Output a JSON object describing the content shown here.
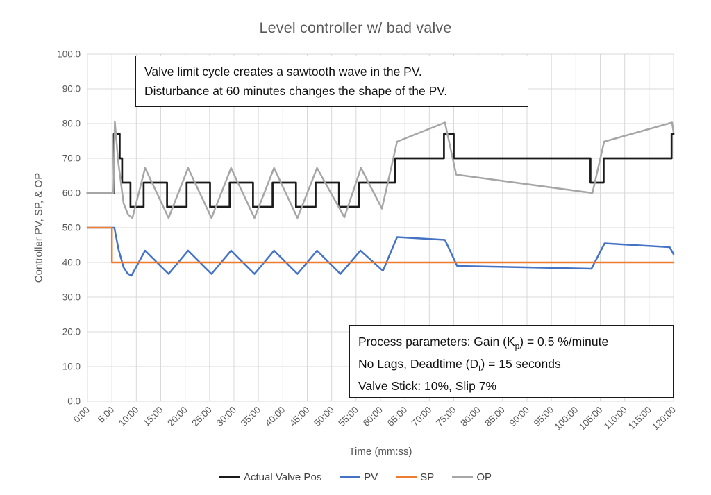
{
  "title": "Level controller w/ bad valve",
  "annotations": {
    "callout": {
      "lines": [
        "Valve limit cycle creates a sawtooth wave in the PV.",
        "Disturbance at 60 minutes changes the shape of the PV."
      ]
    },
    "params": {
      "lines": [
        [
          {
            "t": "Process parameters:  Gain (K"
          },
          {
            "t": "p",
            "sub": true
          },
          {
            "t": ") = 0.5 %/minute"
          }
        ],
        [
          {
            "t": "No Lags, Deadtime (D"
          },
          {
            "t": "t",
            "sub": true
          },
          {
            "t": ") = 15 seconds"
          }
        ],
        [
          {
            "t": "Valve Stick: 10%, Slip 7%"
          }
        ]
      ]
    }
  },
  "chart_data": {
    "type": "line",
    "title": "Level controller w/ bad valve",
    "xlabel": "Time (mm:ss)",
    "ylabel": "Controller PV, SP, & OP",
    "xlim": [
      0,
      120
    ],
    "ylim": [
      0,
      100
    ],
    "grid": true,
    "legend_position": "bottom",
    "grid_color": "#d9d9d9",
    "tick_label_color": "#595959",
    "x_ticks": [
      {
        "minute": 0,
        "label": "0:00"
      },
      {
        "minute": 5,
        "label": "5:00"
      },
      {
        "minute": 10,
        "label": "10:00"
      },
      {
        "minute": 15,
        "label": "15:00"
      },
      {
        "minute": 20,
        "label": "20:00"
      },
      {
        "minute": 25,
        "label": "25:00"
      },
      {
        "minute": 30,
        "label": "30:00"
      },
      {
        "minute": 35,
        "label": "35:00"
      },
      {
        "minute": 40,
        "label": "40:00"
      },
      {
        "minute": 45,
        "label": "45:00"
      },
      {
        "minute": 50,
        "label": "50:00"
      },
      {
        "minute": 55,
        "label": "55:00"
      },
      {
        "minute": 60,
        "label": "60:00"
      },
      {
        "minute": 65,
        "label": "65:00"
      },
      {
        "minute": 70,
        "label": "70:00"
      },
      {
        "minute": 75,
        "label": "75:00"
      },
      {
        "minute": 80,
        "label": "80:00"
      },
      {
        "minute": 85,
        "label": "85:00"
      },
      {
        "minute": 90,
        "label": "90:00"
      },
      {
        "minute": 95,
        "label": "95:00"
      },
      {
        "minute": 100,
        "label": "100:00"
      },
      {
        "minute": 105,
        "label": "105:00"
      },
      {
        "minute": 110,
        "label": "110:00"
      },
      {
        "minute": 115,
        "label": "115:00"
      },
      {
        "minute": 120,
        "label": "120:00"
      }
    ],
    "y_ticks": [
      {
        "value": 0,
        "label": "0.0"
      },
      {
        "value": 10,
        "label": "10.0"
      },
      {
        "value": 20,
        "label": "20.0"
      },
      {
        "value": 30,
        "label": "30.0"
      },
      {
        "value": 40,
        "label": "40.0"
      },
      {
        "value": 50,
        "label": "50.0"
      },
      {
        "value": 60,
        "label": "60.0"
      },
      {
        "value": 70,
        "label": "70.0"
      },
      {
        "value": 80,
        "label": "80.0"
      },
      {
        "value": 90,
        "label": "90.0"
      },
      {
        "value": 100,
        "label": "100.0"
      }
    ],
    "series": [
      {
        "name": "Actual Valve Pos",
        "color": "#1a1a1a",
        "width": 2.7,
        "points": [
          [
            0,
            60
          ],
          [
            5.4,
            60
          ],
          [
            5.4,
            77
          ],
          [
            6.6,
            77
          ],
          [
            6.6,
            70
          ],
          [
            7.1,
            70
          ],
          [
            7.1,
            63
          ],
          [
            8.8,
            63
          ],
          [
            8.8,
            56
          ],
          [
            11.5,
            56
          ],
          [
            11.5,
            63
          ],
          [
            16.3,
            63
          ],
          [
            16.3,
            56
          ],
          [
            20.3,
            56
          ],
          [
            20.3,
            63
          ],
          [
            25.1,
            63
          ],
          [
            25.1,
            56
          ],
          [
            29.1,
            56
          ],
          [
            29.1,
            63
          ],
          [
            33.9,
            63
          ],
          [
            33.9,
            56
          ],
          [
            37.9,
            56
          ],
          [
            37.9,
            63
          ],
          [
            42.7,
            63
          ],
          [
            42.7,
            56
          ],
          [
            46.7,
            56
          ],
          [
            46.7,
            63
          ],
          [
            51.5,
            63
          ],
          [
            51.5,
            56
          ],
          [
            55.6,
            56
          ],
          [
            55.6,
            63
          ],
          [
            63,
            63
          ],
          [
            63,
            70
          ],
          [
            73,
            70
          ],
          [
            73,
            77
          ],
          [
            75,
            77
          ],
          [
            75,
            70
          ],
          [
            103,
            70
          ],
          [
            103,
            63
          ],
          [
            105.7,
            63
          ],
          [
            105.7,
            70
          ],
          [
            119.6,
            70
          ],
          [
            119.6,
            77
          ],
          [
            120,
            77
          ]
        ]
      },
      {
        "name": "PV",
        "color": "#4472c4",
        "width": 2.5,
        "points": [
          [
            0,
            50
          ],
          [
            5.5,
            50
          ],
          [
            6.4,
            43.5
          ],
          [
            7.4,
            38.6
          ],
          [
            8.2,
            36.8
          ],
          [
            9,
            36.2
          ],
          [
            11.8,
            43.4
          ],
          [
            16.6,
            36.7
          ],
          [
            20.6,
            43.4
          ],
          [
            25.4,
            36.7
          ],
          [
            29.4,
            43.4
          ],
          [
            34.2,
            36.7
          ],
          [
            38.2,
            43.4
          ],
          [
            43,
            36.7
          ],
          [
            47,
            43.4
          ],
          [
            51.8,
            36.7
          ],
          [
            55.9,
            43.4
          ],
          [
            60.5,
            37.6
          ],
          [
            63.4,
            47.3
          ],
          [
            73.2,
            46.5
          ],
          [
            75.7,
            39
          ],
          [
            103.2,
            38.2
          ],
          [
            105.9,
            45.5
          ],
          [
            119.2,
            44.4
          ],
          [
            120,
            42.4
          ]
        ]
      },
      {
        "name": "SP",
        "color": "#ed7d31",
        "width": 2.5,
        "points": [
          [
            0,
            50
          ],
          [
            5,
            50
          ],
          [
            5,
            40
          ],
          [
            120,
            40
          ]
        ]
      },
      {
        "name": "OP",
        "color": "#a6a6a6",
        "width": 2.5,
        "points": [
          [
            0,
            60
          ],
          [
            5.3,
            60
          ],
          [
            5.6,
            80.5
          ],
          [
            6.3,
            69
          ],
          [
            7.4,
            57
          ],
          [
            8.3,
            53.8
          ],
          [
            9.2,
            52.8
          ],
          [
            11.8,
            67.2
          ],
          [
            16.6,
            52.8
          ],
          [
            20.6,
            67.2
          ],
          [
            25.4,
            52.8
          ],
          [
            29.4,
            67.2
          ],
          [
            34.2,
            52.8
          ],
          [
            38.2,
            67.2
          ],
          [
            43,
            52.8
          ],
          [
            47,
            67.2
          ],
          [
            52.6,
            53
          ],
          [
            56,
            67.2
          ],
          [
            60.3,
            55.5
          ],
          [
            63.4,
            74.8
          ],
          [
            73.2,
            80.3
          ],
          [
            75.5,
            65.3
          ],
          [
            103.4,
            60
          ],
          [
            105.8,
            74.8
          ],
          [
            119.7,
            80.3
          ],
          [
            120,
            77.5
          ]
        ]
      }
    ]
  }
}
